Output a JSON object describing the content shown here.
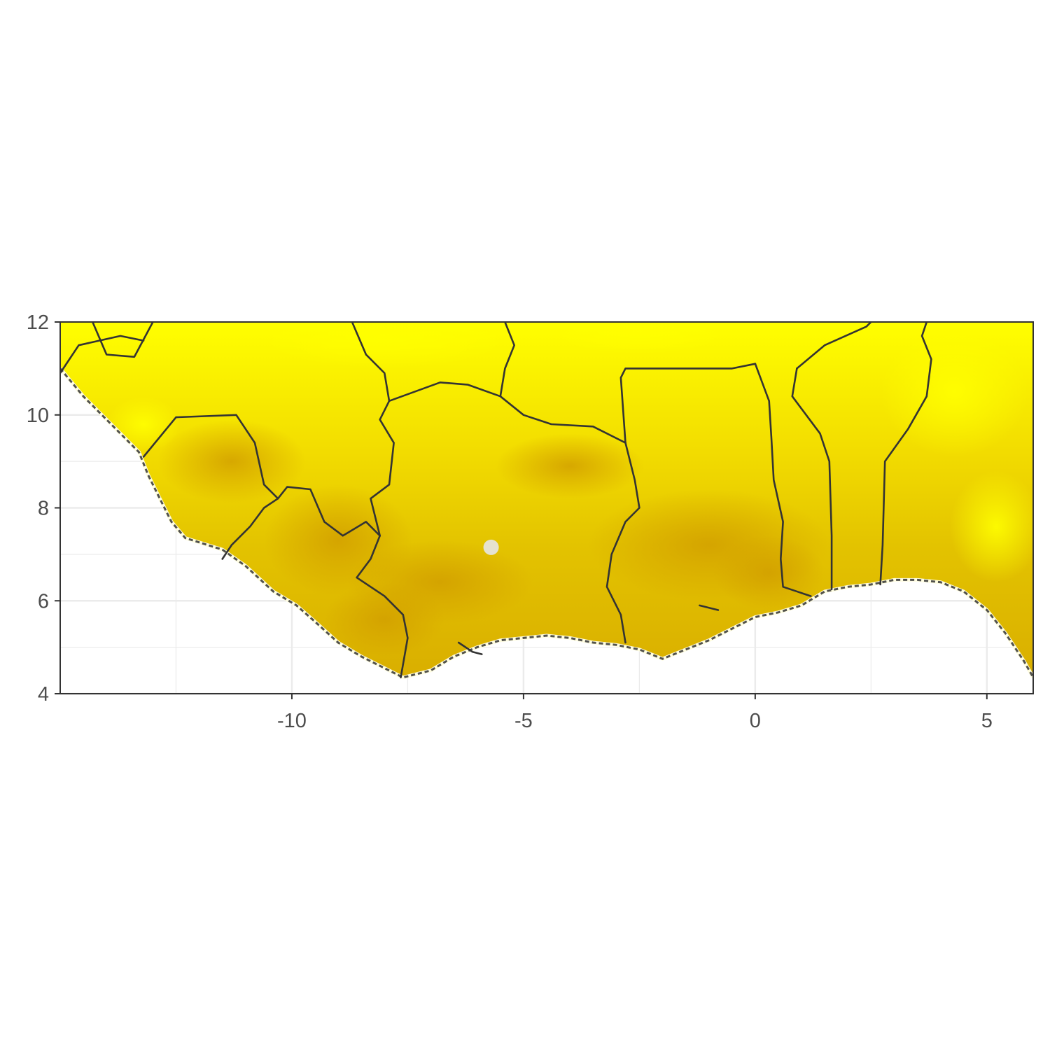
{
  "chart_data": {
    "type": "heatmap",
    "title": "",
    "xlabel": "",
    "ylabel": "",
    "xlim": [
      -15,
      6
    ],
    "ylim": [
      4,
      12
    ],
    "x_ticks": [
      -10,
      -5,
      0,
      5
    ],
    "y_ticks": [
      4,
      6,
      8,
      10,
      12
    ],
    "x_tick_labels": [
      "-10",
      "-5",
      "0",
      "5"
    ],
    "y_tick_labels": [
      "4",
      "6",
      "8",
      "10",
      "12"
    ],
    "grid": true,
    "legend": "none",
    "colors": {
      "high": "#ffff00",
      "mid": "#eccd00",
      "low": "#d4a100",
      "border": "#333333",
      "ocean": "#ffffff",
      "gridline": "#ebebeb"
    },
    "coastline": [
      [
        -15,
        11.0
      ],
      [
        -14.5,
        10.4
      ],
      [
        -14.0,
        9.9
      ],
      [
        -13.7,
        9.6
      ],
      [
        -13.3,
        9.2
      ],
      [
        -13.1,
        8.7
      ],
      [
        -12.9,
        8.3
      ],
      [
        -12.6,
        7.7
      ],
      [
        -12.3,
        7.35
      ],
      [
        -11.5,
        7.1
      ],
      [
        -11.0,
        6.75
      ],
      [
        -10.4,
        6.2
      ],
      [
        -9.9,
        5.9
      ],
      [
        -9.5,
        5.55
      ],
      [
        -9.0,
        5.1
      ],
      [
        -8.5,
        4.8
      ],
      [
        -8.0,
        4.55
      ],
      [
        -7.6,
        4.35
      ],
      [
        -7.0,
        4.5
      ],
      [
        -6.5,
        4.8
      ],
      [
        -6.0,
        5.0
      ],
      [
        -5.5,
        5.15
      ],
      [
        -5.0,
        5.2
      ],
      [
        -4.5,
        5.25
      ],
      [
        -4.0,
        5.2
      ],
      [
        -3.5,
        5.1
      ],
      [
        -3.0,
        5.05
      ],
      [
        -2.5,
        4.95
      ],
      [
        -2.0,
        4.75
      ],
      [
        -1.5,
        4.95
      ],
      [
        -1.0,
        5.15
      ],
      [
        -0.5,
        5.4
      ],
      [
        0.0,
        5.65
      ],
      [
        0.5,
        5.75
      ],
      [
        1.0,
        5.9
      ],
      [
        1.5,
        6.2
      ],
      [
        2.0,
        6.3
      ],
      [
        2.5,
        6.35
      ],
      [
        3.0,
        6.45
      ],
      [
        3.5,
        6.45
      ],
      [
        4.0,
        6.4
      ],
      [
        4.5,
        6.2
      ],
      [
        5.0,
        5.8
      ],
      [
        5.4,
        5.3
      ],
      [
        5.8,
        4.7
      ],
      [
        6.0,
        4.35
      ]
    ],
    "borders": [
      [
        [
          -14.3,
          12.0
        ],
        [
          -14.0,
          11.3
        ],
        [
          -13.4,
          11.25
        ],
        [
          -13.0,
          12.0
        ]
      ],
      [
        [
          -15.0,
          10.9
        ],
        [
          -14.6,
          11.5
        ],
        [
          -13.7,
          11.7
        ],
        [
          -13.2,
          11.6
        ]
      ],
      [
        [
          -13.2,
          9.1
        ],
        [
          -12.5,
          9.95
        ],
        [
          -11.2,
          10.0
        ],
        [
          -10.8,
          9.4
        ],
        [
          -10.6,
          8.5
        ],
        [
          -10.3,
          8.2
        ]
      ],
      [
        [
          -11.5,
          6.9
        ],
        [
          -11.3,
          7.2
        ],
        [
          -10.9,
          7.6
        ],
        [
          -10.6,
          8.0
        ],
        [
          -10.3,
          8.2
        ],
        [
          -10.1,
          8.45
        ],
        [
          -9.6,
          8.4
        ],
        [
          -9.3,
          7.7
        ],
        [
          -8.9,
          7.4
        ],
        [
          -8.4,
          7.7
        ],
        [
          -8.1,
          7.4
        ]
      ],
      [
        [
          -8.1,
          7.4
        ],
        [
          -8.3,
          6.9
        ],
        [
          -8.6,
          6.5
        ],
        [
          -8.0,
          6.1
        ],
        [
          -7.6,
          5.7
        ],
        [
          -7.5,
          5.2
        ],
        [
          -7.65,
          4.35
        ]
      ],
      [
        [
          -8.1,
          7.4
        ],
        [
          -8.3,
          8.2
        ],
        [
          -7.9,
          8.5
        ],
        [
          -7.8,
          9.4
        ],
        [
          -8.1,
          9.9
        ],
        [
          -7.9,
          10.3
        ],
        [
          -6.8,
          10.7
        ],
        [
          -6.2,
          10.65
        ],
        [
          -5.5,
          10.4
        ],
        [
          -5.0,
          10.0
        ],
        [
          -4.4,
          9.8
        ],
        [
          -3.5,
          9.75
        ],
        [
          -2.8,
          9.4
        ]
      ],
      [
        [
          -8.7,
          12.0
        ],
        [
          -8.4,
          11.3
        ],
        [
          -8.0,
          10.9
        ],
        [
          -7.9,
          10.3
        ]
      ],
      [
        [
          -5.5,
          10.4
        ],
        [
          -5.4,
          11.0
        ],
        [
          -5.2,
          11.5
        ],
        [
          -5.4,
          12.0
        ]
      ],
      [
        [
          -2.8,
          9.4
        ],
        [
          -2.6,
          8.6
        ],
        [
          -2.5,
          8.0
        ],
        [
          -2.8,
          7.7
        ],
        [
          -3.1,
          7.0
        ],
        [
          -3.2,
          6.3
        ],
        [
          -2.9,
          5.7
        ],
        [
          -2.8,
          5.1
        ]
      ],
      [
        [
          -2.8,
          9.4
        ],
        [
          -2.9,
          10.8
        ],
        [
          -2.8,
          11.0
        ],
        [
          -0.5,
          11.0
        ],
        [
          0.0,
          11.1
        ]
      ],
      [
        [
          0.0,
          11.1
        ],
        [
          0.3,
          10.3
        ],
        [
          0.35,
          9.5
        ],
        [
          0.4,
          8.6
        ],
        [
          0.6,
          7.7
        ],
        [
          0.55,
          6.9
        ],
        [
          0.6,
          6.3
        ],
        [
          1.2,
          6.1
        ]
      ],
      [
        [
          0.9,
          11.0
        ],
        [
          0.8,
          10.4
        ],
        [
          1.4,
          9.6
        ],
        [
          1.6,
          9.0
        ],
        [
          1.65,
          7.4
        ],
        [
          1.65,
          6.25
        ]
      ],
      [
        [
          0.9,
          11.0
        ],
        [
          1.5,
          11.5
        ],
        [
          2.4,
          11.9
        ],
        [
          2.5,
          12.0
        ]
      ],
      [
        [
          2.7,
          6.35
        ],
        [
          2.75,
          7.2
        ],
        [
          2.8,
          9.0
        ],
        [
          3.3,
          9.7
        ],
        [
          3.7,
          10.4
        ],
        [
          3.8,
          11.2
        ],
        [
          3.6,
          11.7
        ],
        [
          3.7,
          12.0
        ]
      ],
      [
        [
          -6.4,
          5.1
        ],
        [
          -6.1,
          4.9
        ],
        [
          -5.9,
          4.85
        ]
      ],
      [
        [
          -1.2,
          5.9
        ],
        [
          -0.8,
          5.8
        ]
      ]
    ]
  }
}
